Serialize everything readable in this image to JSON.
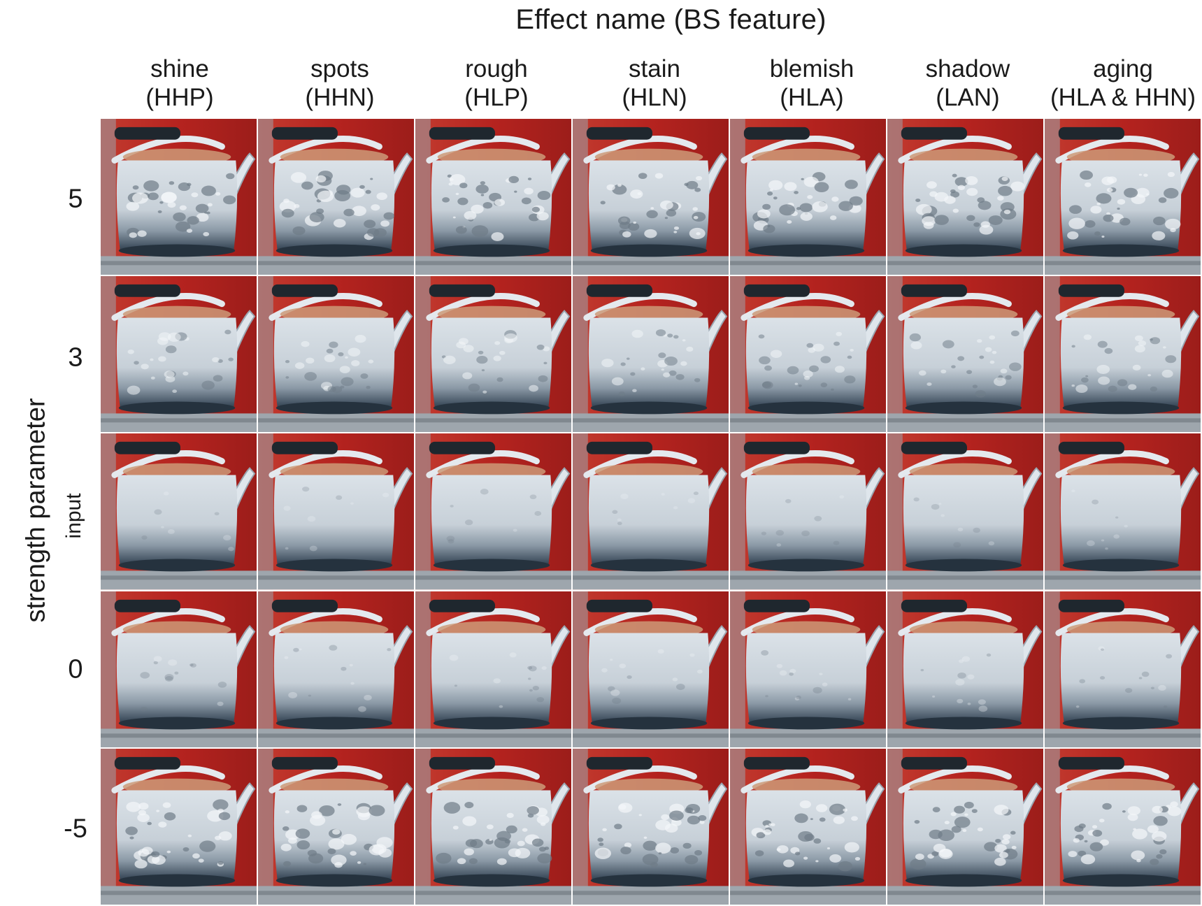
{
  "title": "Effect name (BS feature)",
  "y_axis_label": "strength parameter",
  "columns": [
    {
      "name": "shine",
      "feature": "(HHP)"
    },
    {
      "name": "spots",
      "feature": "(HHN)"
    },
    {
      "name": "rough",
      "feature": "(HLP)"
    },
    {
      "name": "stain",
      "feature": "(HLN)"
    },
    {
      "name": "blemish",
      "feature": "(HLA)"
    },
    {
      "name": "shadow",
      "feature": "(LAN)"
    },
    {
      "name": "aging",
      "feature": "(HLA & HHN)"
    }
  ],
  "rows": [
    "5",
    "3",
    "input",
    "0",
    "-5"
  ],
  "colors": {
    "background": "#b5231f",
    "kettle_body": "#c7d0d8",
    "kettle_base": "#2f3f4f",
    "handle_grip": "#1f272e"
  }
}
